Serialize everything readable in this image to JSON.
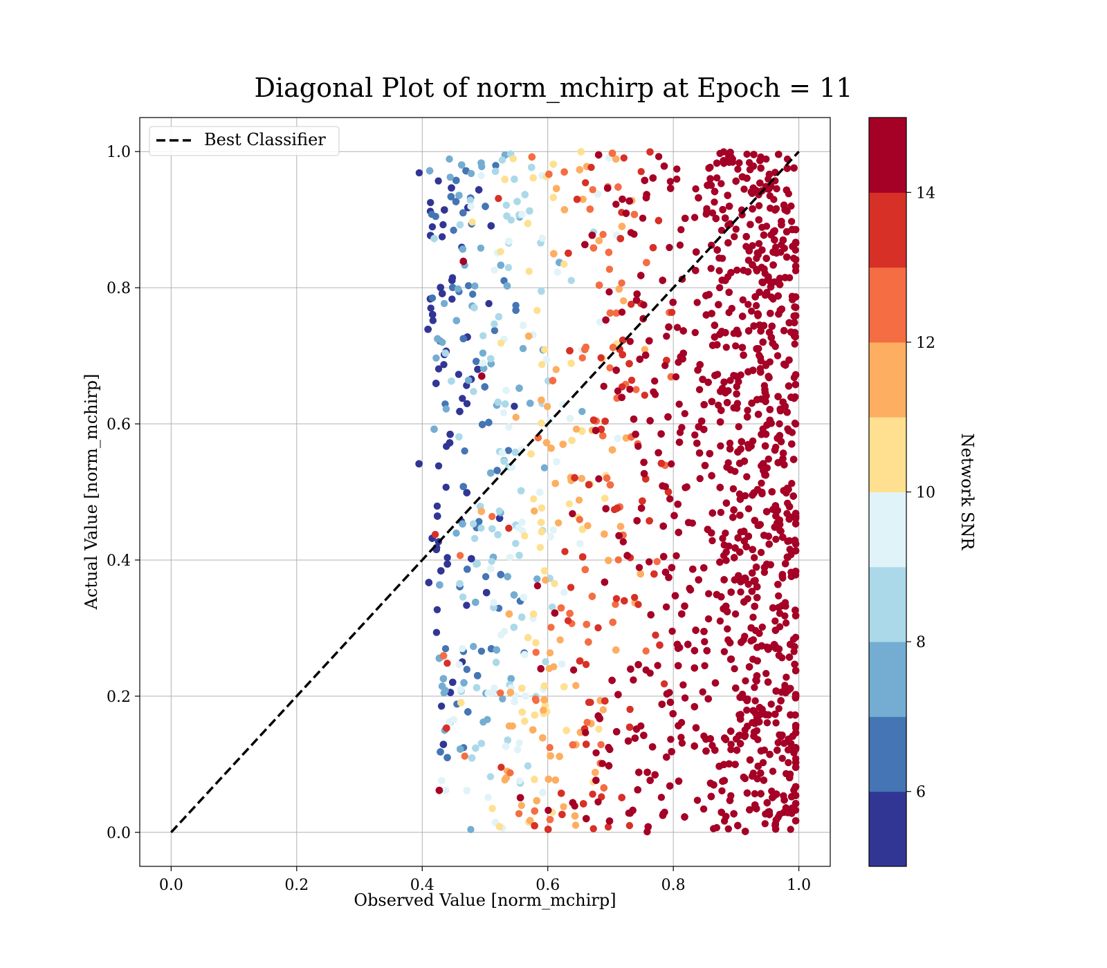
{
  "chart_data": {
    "type": "scatter",
    "title": "Diagonal Plot of norm_mchirp at Epoch = 11",
    "xlabel": "Observed Value [norm_mchirp]",
    "ylabel": "Actual Value [norm_mchirp]",
    "xlim": [
      -0.05,
      1.05
    ],
    "ylim": [
      -0.05,
      1.05
    ],
    "xticks": [
      0.0,
      0.2,
      0.4,
      0.6,
      0.8,
      1.0
    ],
    "yticks": [
      0.0,
      0.2,
      0.4,
      0.6,
      0.8,
      1.0
    ],
    "xtick_labels": [
      "0.0",
      "0.2",
      "0.4",
      "0.6",
      "0.8",
      "1.0"
    ],
    "ytick_labels": [
      "0.0",
      "0.2",
      "0.4",
      "0.6",
      "0.8",
      "1.0"
    ],
    "grid": true,
    "legend": {
      "placement": "top-left",
      "entries": [
        "Best Classifier"
      ]
    },
    "reference_line": {
      "name": "Best Classifier",
      "x": [
        0.0,
        1.0
      ],
      "y": [
        0.0,
        1.0
      ],
      "style": "dashed",
      "color": "#000000"
    },
    "colorbar": {
      "label": "Network SNR",
      "range": [
        5,
        15
      ],
      "ticks": [
        6,
        8,
        10,
        12,
        14
      ],
      "tick_labels": [
        "6",
        "8",
        "10",
        "12",
        "14"
      ],
      "colors": [
        "#313695",
        "#4575b4",
        "#74add1",
        "#abd9e9",
        "#e0f3f8",
        "#fee090",
        "#fdae61",
        "#f46d43",
        "#d73027",
        "#a50026"
      ]
    },
    "scatter_summary": {
      "x_range": [
        0.39,
        1.0
      ],
      "y_range": [
        0.0,
        1.0
      ],
      "trend": "SNR increases with observed value; predictions x below ~0.7 are mostly low SNR (blue), above ~0.8 high SNR (dark red)",
      "approx_points_by_snr": [
        {
          "snr": 5.5,
          "x_center": 0.43
        },
        {
          "snr": 6.5,
          "x_center": 0.47
        },
        {
          "snr": 7.5,
          "x_center": 0.53
        },
        {
          "snr": 8.5,
          "x_center": 0.59
        },
        {
          "snr": 9.5,
          "x_center": 0.63
        },
        {
          "snr": 10.5,
          "x_center": 0.67
        },
        {
          "snr": 11.5,
          "x_center": 0.71
        },
        {
          "snr": 12.5,
          "x_center": 0.74
        },
        {
          "snr": 13.5,
          "x_center": 0.77
        },
        {
          "snr": 14.5,
          "x_center": 0.89
        }
      ]
    }
  }
}
